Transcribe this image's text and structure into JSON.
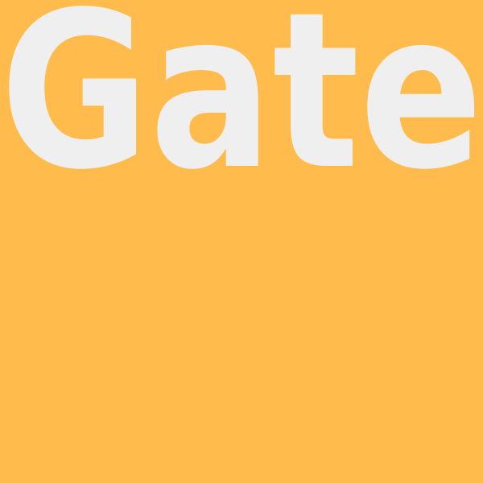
{
  "title": "Gate",
  "colors": {
    "background": "#FFBB4B",
    "text": "#EFEFEF"
  }
}
